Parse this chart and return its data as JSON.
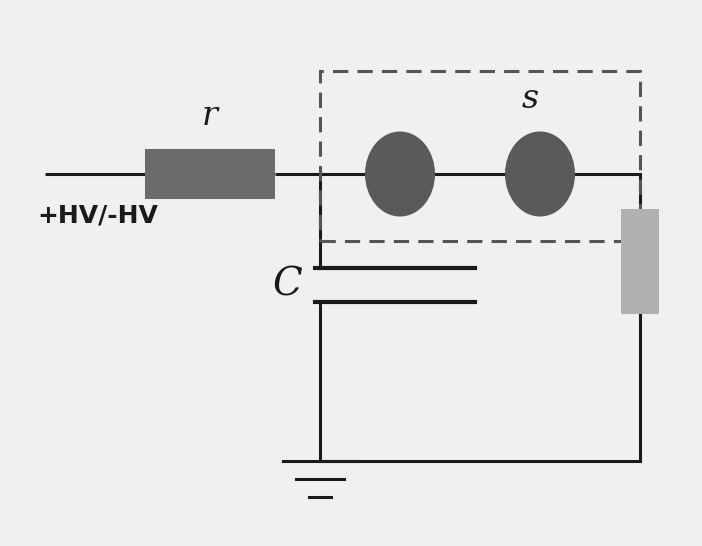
{
  "bg_color": "#f0f0f0",
  "line_color": "#1a1a1a",
  "line_width": 2.2,
  "resistor_color": "#6b6b6b",
  "electrode_color": "#5a5a5a",
  "load_color": "#b0b0b0",
  "dashed_box_color": "#555555",
  "label_r": "r",
  "label_s": "s",
  "label_C": "C",
  "label_hv": "+HV/-HV",
  "label_fontsize": 24,
  "hv_fontsize": 18,
  "c_fontsize": 28
}
